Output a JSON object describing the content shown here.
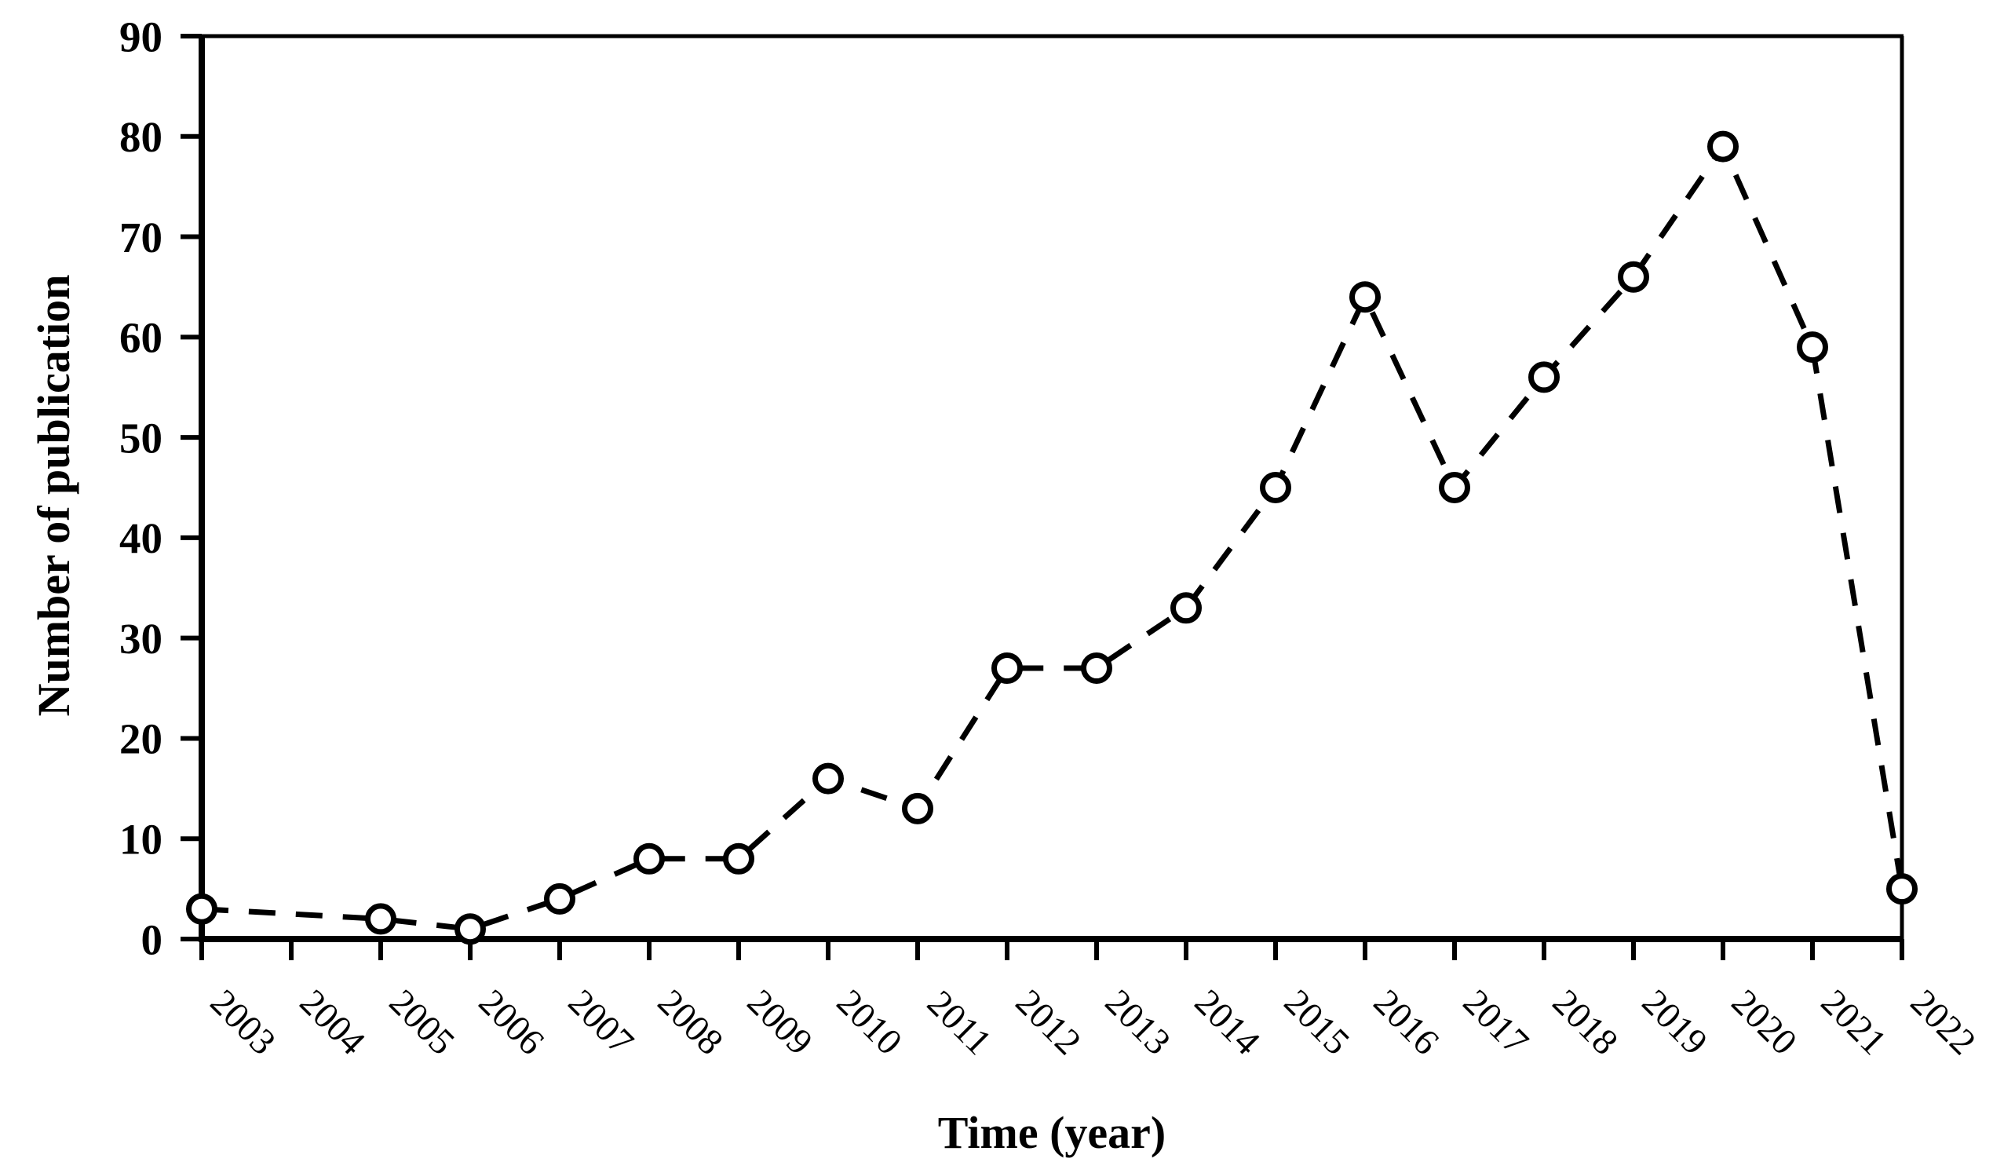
{
  "chart_data": {
    "type": "line",
    "title": "",
    "xlabel": "Time (year)",
    "ylabel": "Number of publication",
    "categories": [
      "2003",
      "2004",
      "2005",
      "2006",
      "2007",
      "2008",
      "2009",
      "2010",
      "2011",
      "2012",
      "2013",
      "2014",
      "2015",
      "2016",
      "2017",
      "2018",
      "2019",
      "2020",
      "2021",
      "2022"
    ],
    "series": [
      {
        "name": "Number of publication",
        "values": [
          3,
          null,
          2,
          1,
          4,
          8,
          8,
          16,
          13,
          27,
          27,
          33,
          45,
          64,
          45,
          56,
          66,
          79,
          59,
          5
        ]
      }
    ],
    "missing_points": [
      "2004"
    ],
    "ylim": [
      0,
      90
    ],
    "y_ticks": [
      0,
      10,
      20,
      30,
      40,
      50,
      60,
      70,
      80,
      90
    ],
    "grid": "off",
    "legend": "none",
    "line_style": "dashed",
    "marker": "open-circle",
    "line_color": "#000000",
    "marker_fill": "#ffffff",
    "background_color": "#ffffff"
  }
}
